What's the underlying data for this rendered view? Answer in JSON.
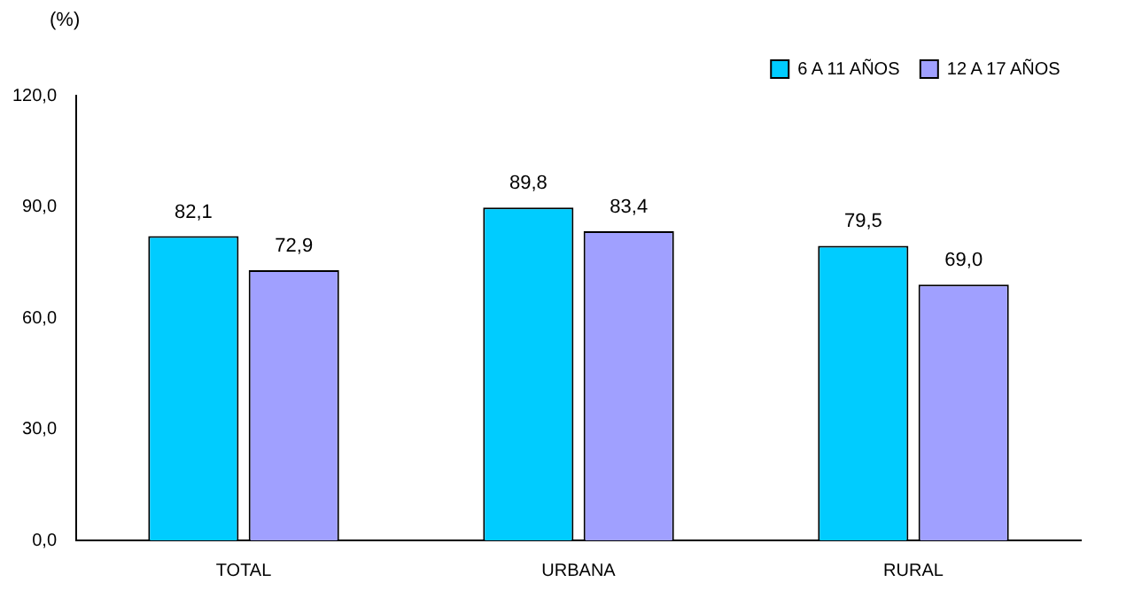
{
  "chart_data": {
    "type": "bar",
    "ylabel": "(%)",
    "categories": [
      "TOTAL",
      "URBANA",
      "RURAL"
    ],
    "series": [
      {
        "name": "6 A 11 AÑOS",
        "color": "#00ccff",
        "values": [
          82.1,
          89.8,
          79.5
        ],
        "value_labels": [
          "82,1",
          "89,8",
          "79,5"
        ]
      },
      {
        "name": "12 A 17 AÑOS",
        "color": "#a0a0ff",
        "values": [
          72.9,
          83.4,
          69.0
        ],
        "value_labels": [
          "72,9",
          "83,4",
          "69,0"
        ]
      }
    ],
    "ylim": [
      0,
      120
    ],
    "yticks": [
      {
        "value": 0,
        "label": "0,0"
      },
      {
        "value": 30,
        "label": "30,0"
      },
      {
        "value": 60,
        "label": "60,0"
      },
      {
        "value": 90,
        "label": "90,0"
      },
      {
        "value": 120,
        "label": "120,0"
      }
    ],
    "grid": false,
    "legend": "top right"
  }
}
